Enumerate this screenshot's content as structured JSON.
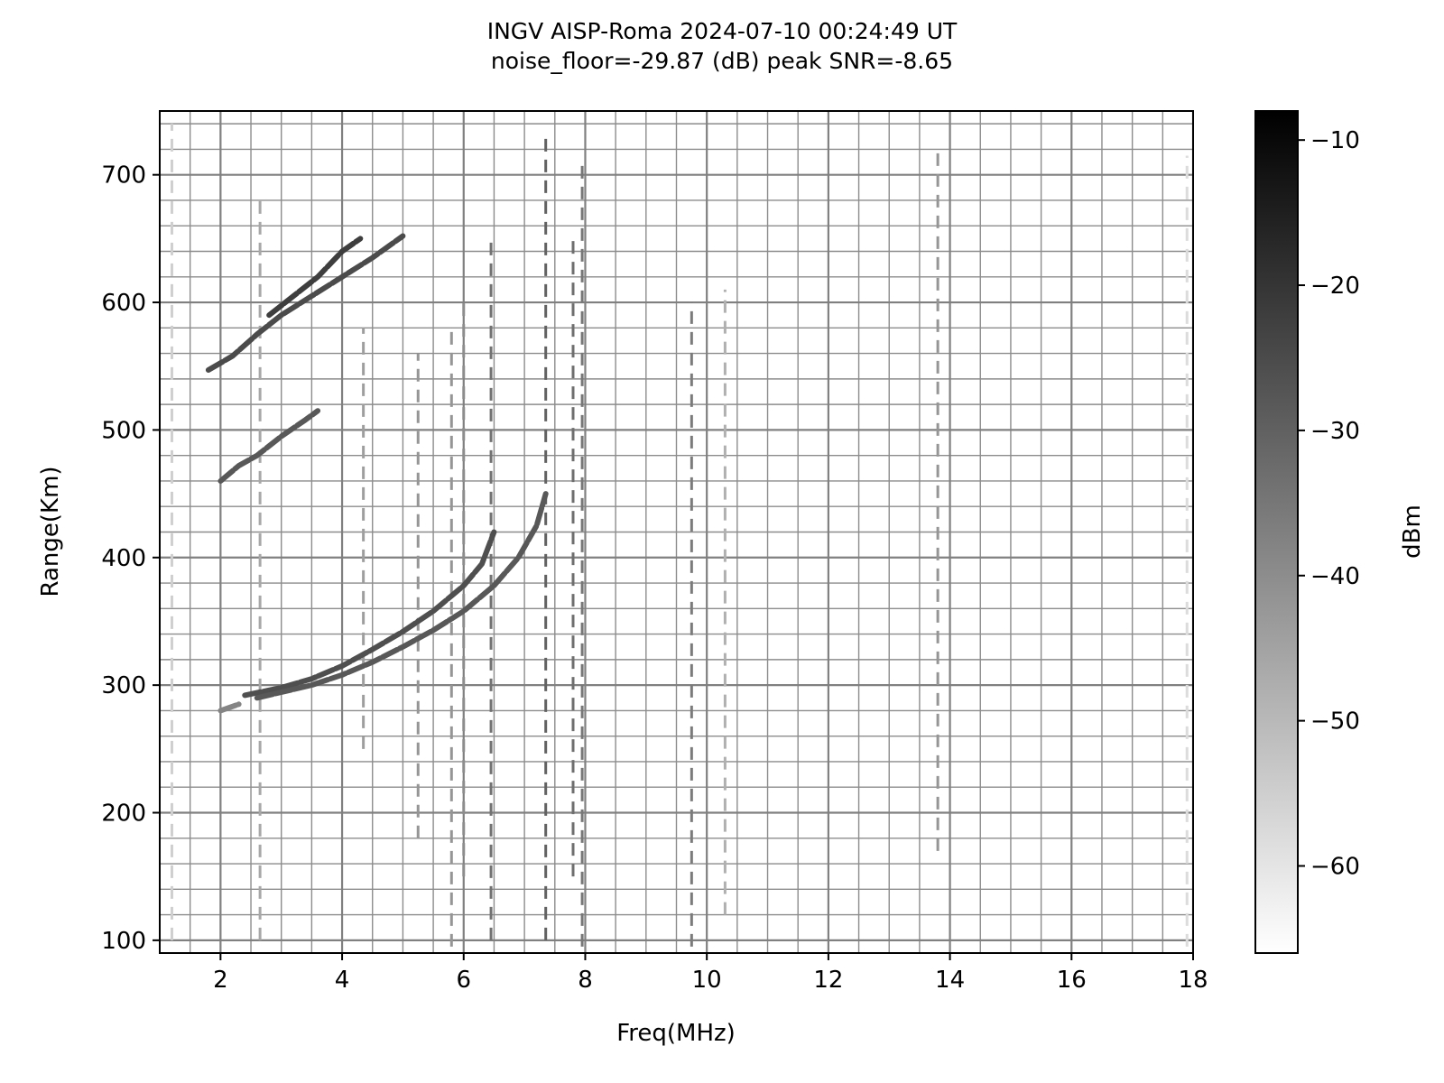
{
  "chart_data": {
    "type": "heatmap",
    "title_lines": [
      "INGV AISP-Roma 2024-07-10 00:24:49 UT",
      "noise_floor=-29.87 (dB) peak SNR=-8.65"
    ],
    "xlabel": "Freq(MHz)",
    "ylabel": "Range(Km)",
    "xlim": [
      1,
      18
    ],
    "ylim": [
      90,
      750
    ],
    "xticks": [
      2,
      4,
      6,
      8,
      10,
      12,
      14,
      16,
      18
    ],
    "xtick_labels": [
      "2",
      "4",
      "6",
      "8",
      "10",
      "12",
      "14",
      "16",
      "18"
    ],
    "yticks": [
      100,
      200,
      300,
      400,
      500,
      600,
      700
    ],
    "ytick_labels": [
      "100",
      "200",
      "300",
      "400",
      "500",
      "600",
      "700"
    ],
    "grid": true,
    "colormap": "gray_r",
    "colorbar": {
      "label": "dBm",
      "range": [
        -66,
        -8
      ],
      "ticks": [
        -10,
        -20,
        -30,
        -40,
        -50,
        -60
      ],
      "tick_labels": [
        "−10",
        "−20",
        "−30",
        "−40",
        "−50",
        "−60"
      ]
    },
    "traces": [
      {
        "name": "",
        "intensity": -25,
        "points": [
          [
            1.8,
            547
          ],
          [
            2.2,
            558
          ],
          [
            2.6,
            575
          ],
          [
            3.0,
            590
          ],
          [
            3.5,
            605
          ],
          [
            4.0,
            620
          ],
          [
            4.5,
            635
          ],
          [
            5.0,
            652
          ]
        ]
      },
      {
        "name": "",
        "intensity": -22,
        "points": [
          [
            2.8,
            590
          ],
          [
            3.2,
            605
          ],
          [
            3.6,
            620
          ],
          [
            4.0,
            640
          ],
          [
            4.3,
            650
          ]
        ]
      },
      {
        "name": "",
        "intensity": -28,
        "points": [
          [
            2.0,
            460
          ],
          [
            2.3,
            472
          ],
          [
            2.6,
            480
          ],
          [
            3.0,
            495
          ],
          [
            3.4,
            508
          ],
          [
            3.6,
            515
          ]
        ]
      },
      {
        "name": "",
        "intensity": -26,
        "points": [
          [
            2.4,
            292
          ],
          [
            3.0,
            298
          ],
          [
            3.5,
            305
          ],
          [
            4.0,
            315
          ],
          [
            4.5,
            328
          ],
          [
            5.0,
            342
          ],
          [
            5.5,
            358
          ],
          [
            6.0,
            378
          ],
          [
            6.3,
            395
          ],
          [
            6.5,
            420
          ]
        ]
      },
      {
        "name": "",
        "intensity": -28,
        "points": [
          [
            2.6,
            290
          ],
          [
            3.5,
            300
          ],
          [
            4.0,
            308
          ],
          [
            4.5,
            318
          ],
          [
            5.0,
            330
          ],
          [
            5.5,
            343
          ],
          [
            6.0,
            358
          ],
          [
            6.5,
            378
          ],
          [
            6.9,
            400
          ],
          [
            7.2,
            425
          ],
          [
            7.35,
            450
          ]
        ]
      },
      {
        "name": "",
        "intensity": -38,
        "points": [
          [
            2.0,
            280
          ],
          [
            2.3,
            285
          ]
        ]
      }
    ],
    "vertical_streaks": [
      {
        "f": 7.35,
        "r": [
          100,
          730
        ],
        "intensity": -30
      },
      {
        "f": 7.95,
        "r": [
          95,
          710
        ],
        "intensity": -35
      },
      {
        "f": 7.8,
        "r": [
          150,
          650
        ],
        "intensity": -33
      },
      {
        "f": 9.75,
        "r": [
          95,
          600
        ],
        "intensity": -36
      },
      {
        "f": 13.8,
        "r": [
          170,
          720
        ],
        "intensity": -42
      },
      {
        "f": 17.9,
        "r": [
          95,
          715
        ],
        "intensity": -58
      },
      {
        "f": 6.45,
        "r": [
          100,
          650
        ],
        "intensity": -34
      },
      {
        "f": 6.0,
        "r": [
          150,
          600
        ],
        "intensity": -40
      },
      {
        "f": 5.8,
        "r": [
          95,
          580
        ],
        "intensity": -42
      },
      {
        "f": 5.25,
        "r": [
          180,
          560
        ],
        "intensity": -42
      },
      {
        "f": 4.35,
        "r": [
          250,
          580
        ],
        "intensity": -44
      },
      {
        "f": 1.2,
        "r": [
          100,
          740
        ],
        "intensity": -55
      },
      {
        "f": 10.3,
        "r": [
          120,
          610
        ],
        "intensity": -48
      },
      {
        "f": 2.65,
        "r": [
          100,
          680
        ],
        "intensity": -46
      }
    ]
  }
}
